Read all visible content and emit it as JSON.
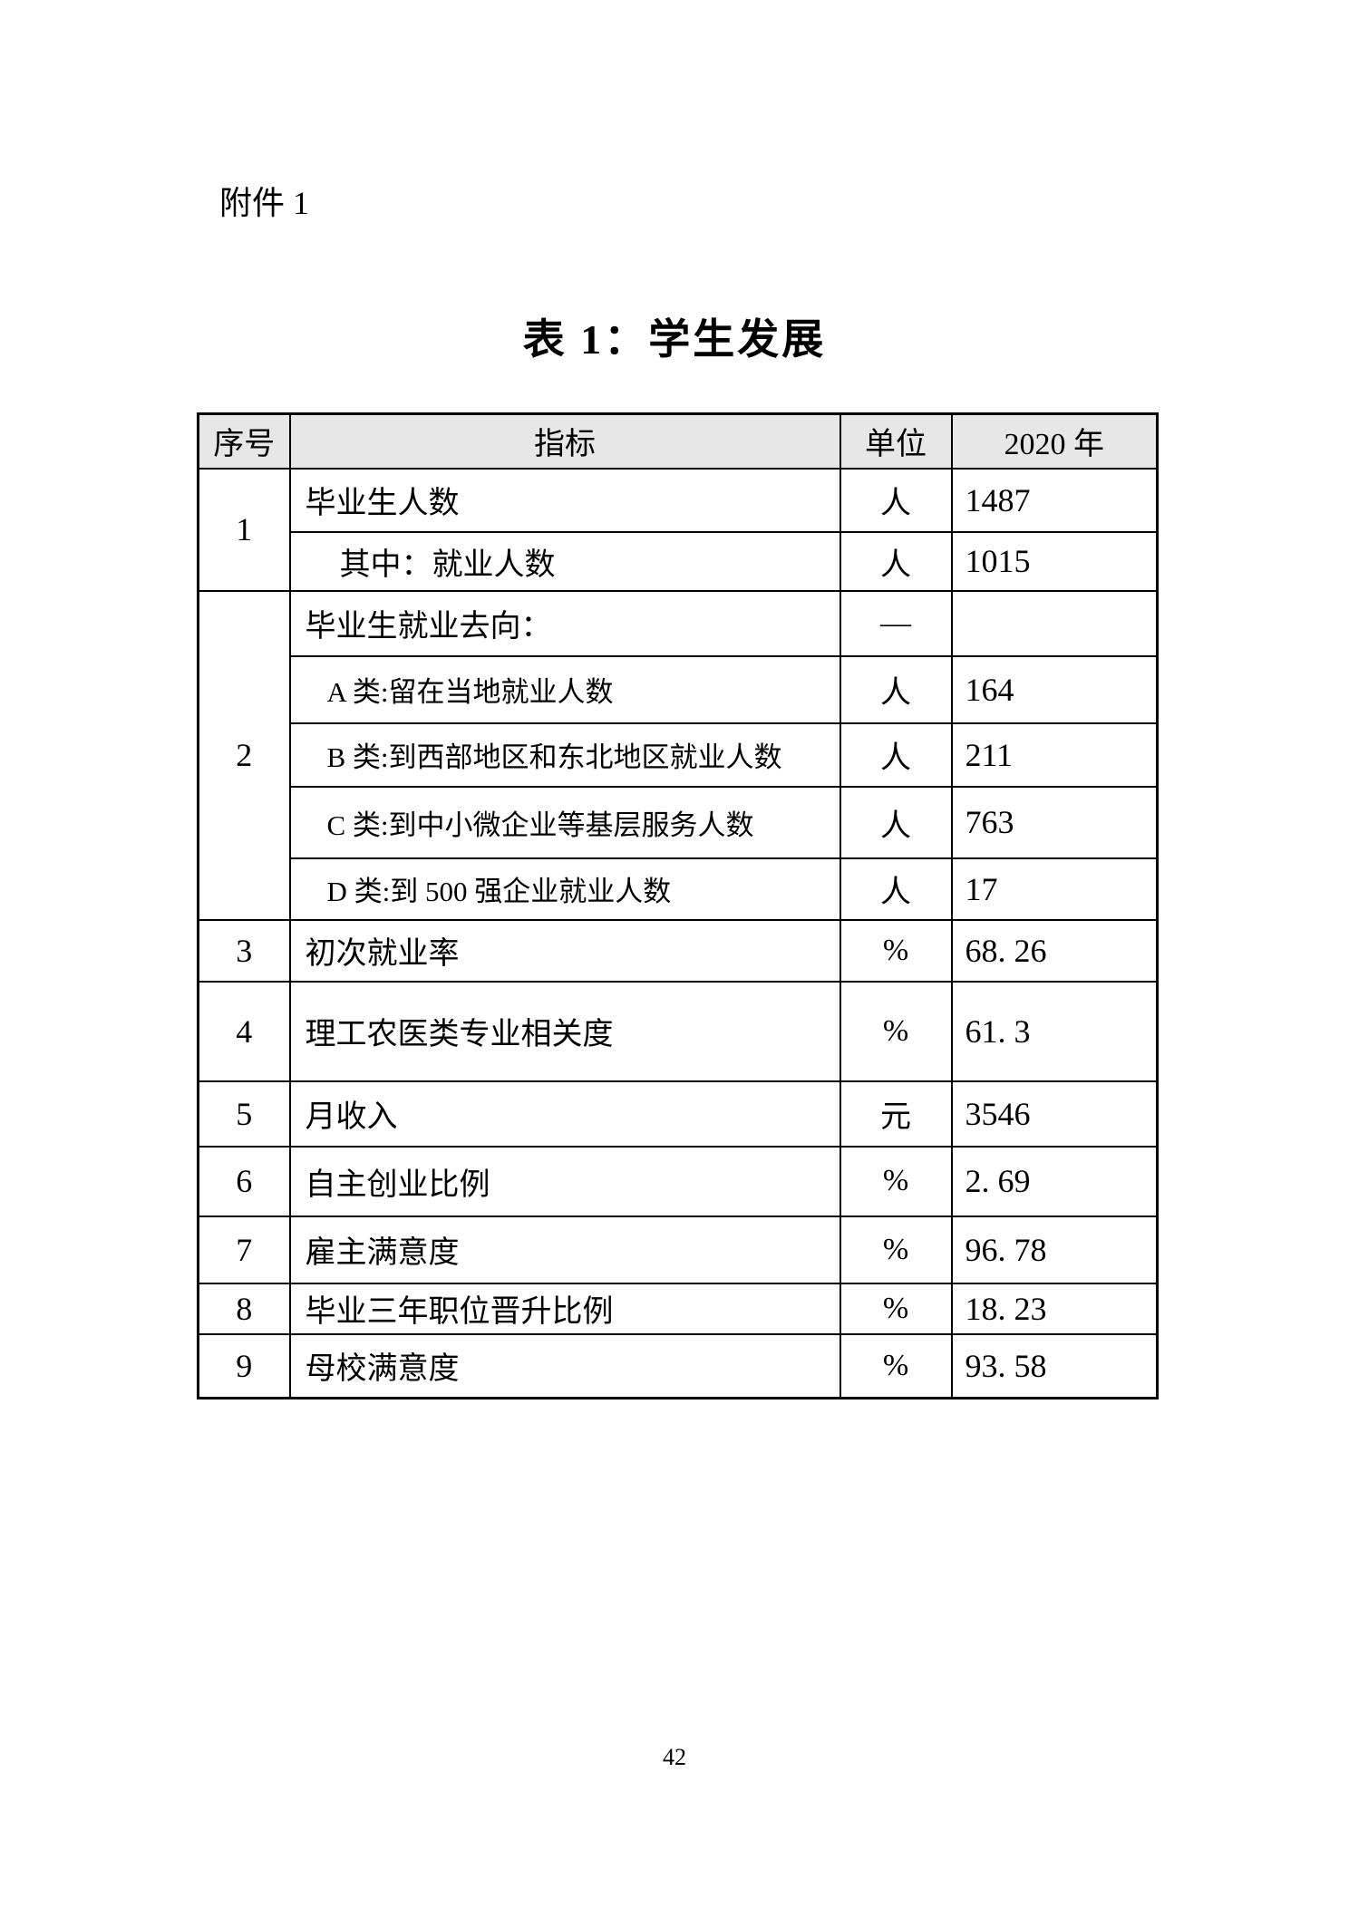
{
  "page": {
    "attachment_label": "附件 1",
    "title": "表 1：学生发展",
    "page_number": "42"
  },
  "table": {
    "headers": [
      "序号",
      "指标",
      "单位",
      "2020 年"
    ],
    "header_bg": "#e7e7e7",
    "border_color": "#000000",
    "rows": [
      {
        "no": "1",
        "rowspan": 2,
        "indicator": "毕业生人数",
        "unit": "人",
        "value": "1487",
        "level": 0
      },
      {
        "indicator": "其中：就业人数",
        "unit": "人",
        "value": "1015",
        "level": 1
      },
      {
        "no": "2",
        "rowspan": 5,
        "indicator": "毕业生就业去向：",
        "unit": "—",
        "value": "",
        "level": 0
      },
      {
        "indicator": "A 类:留在当地就业人数",
        "unit": "人",
        "value": "164",
        "level": 2
      },
      {
        "indicator": "B 类:到西部地区和东北地区就业人数",
        "unit": "人",
        "value": "211",
        "level": 2
      },
      {
        "indicator": "C 类:到中小微企业等基层服务人数",
        "unit": "人",
        "value": "763",
        "level": 2
      },
      {
        "indicator": "D 类:到 500 强企业就业人数",
        "unit": "人",
        "value": "17",
        "level": 2
      },
      {
        "no": "3",
        "rowspan": 1,
        "indicator": "初次就业率",
        "unit": "%",
        "value": "68. 26",
        "level": 0
      },
      {
        "no": "4",
        "rowspan": 1,
        "indicator": "理工农医类专业相关度",
        "unit": "%",
        "value": "61. 3",
        "level": 0
      },
      {
        "no": "5",
        "rowspan": 1,
        "indicator": "月收入",
        "unit": "元",
        "value": "3546",
        "level": 0
      },
      {
        "no": "6",
        "rowspan": 1,
        "indicator": "自主创业比例",
        "unit": "%",
        "value": "2. 69",
        "level": 0
      },
      {
        "no": "7",
        "rowspan": 1,
        "indicator": "雇主满意度",
        "unit": "%",
        "value": "96. 78",
        "level": 0
      },
      {
        "no": "8",
        "rowspan": 1,
        "indicator": "毕业三年职位晋升比例",
        "unit": "%",
        "value": "18. 23",
        "level": 0
      },
      {
        "no": "9",
        "rowspan": 1,
        "indicator": "母校满意度",
        "unit": "%",
        "value": "93. 58",
        "level": 0
      }
    ]
  }
}
